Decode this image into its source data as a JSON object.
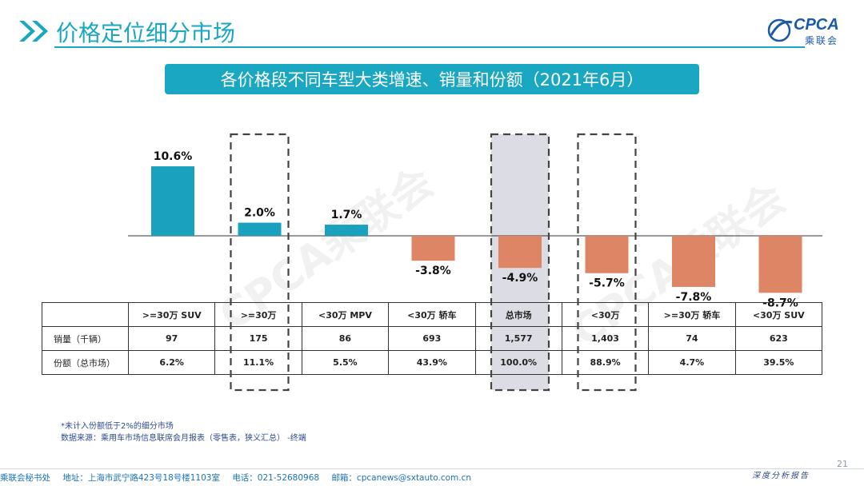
{
  "header": {
    "title": "价格定位细分市场",
    "logo_text": "CPCA",
    "logo_cn": "乘联会"
  },
  "banner": {
    "text": "各价格段不同车型大类增速、销量和份额（2021年6月）"
  },
  "chart_data": {
    "type": "bar",
    "categories": [
      ">=30万 SUV",
      ">=30万",
      "<30万 MPV",
      "<30万 轿车",
      "总市场",
      "<30万",
      ">=30万 轿车",
      "<30万 SUV"
    ],
    "values": [
      10.6,
      2.0,
      1.7,
      -3.8,
      -4.9,
      -5.7,
      -7.8,
      -8.7
    ],
    "value_labels": [
      "10.6%",
      "2.0%",
      "1.7%",
      "-3.8%",
      "-4.9%",
      "-5.7%",
      "-7.8%",
      "-8.7%"
    ],
    "unit": "%",
    "ylim": [
      -10,
      14
    ],
    "colors": {
      "positive": "#1aa1bd",
      "negative": "#de8566"
    },
    "highlight_boxes": [
      1,
      4,
      5
    ],
    "shaded_box": 4
  },
  "table": {
    "headers": [
      ">=30万 SUV",
      ">=30万",
      "<30万 MPV",
      "<30万 轿车",
      "总市场",
      "<30万",
      ">=30万 轿车",
      "<30万 SUV"
    ],
    "rows": [
      {
        "label": "销量（千辆）",
        "cells": [
          "97",
          "175",
          "86",
          "693",
          "1,577",
          "1,403",
          "74",
          "623"
        ]
      },
      {
        "label": "份额（总市场）",
        "cells": [
          "6.2%",
          "11.1%",
          "5.5%",
          "43.9%",
          "100.0%",
          "88.9%",
          "4.7%",
          "39.5%"
        ]
      }
    ]
  },
  "notes": [
    "*未计入份额低于2%的细分市场",
    "数据来源：乘用车市场信息联席会月报表（零售表，狭义汇总） -终端"
  ],
  "footer": {
    "office": "乘联会秘书处",
    "address": "地址：上海市武宁路423号18号楼1103室",
    "phone": "电话：021-52680968",
    "email": "邮箱：cpcanews@sxtauto.com.cn",
    "tagline": "深度分析报告",
    "page_number": "21"
  },
  "watermark": "CPCA乘联会",
  "colors": {
    "accent": "#1aa7c1",
    "positive": "#1aa1bd",
    "negative": "#de8566"
  }
}
